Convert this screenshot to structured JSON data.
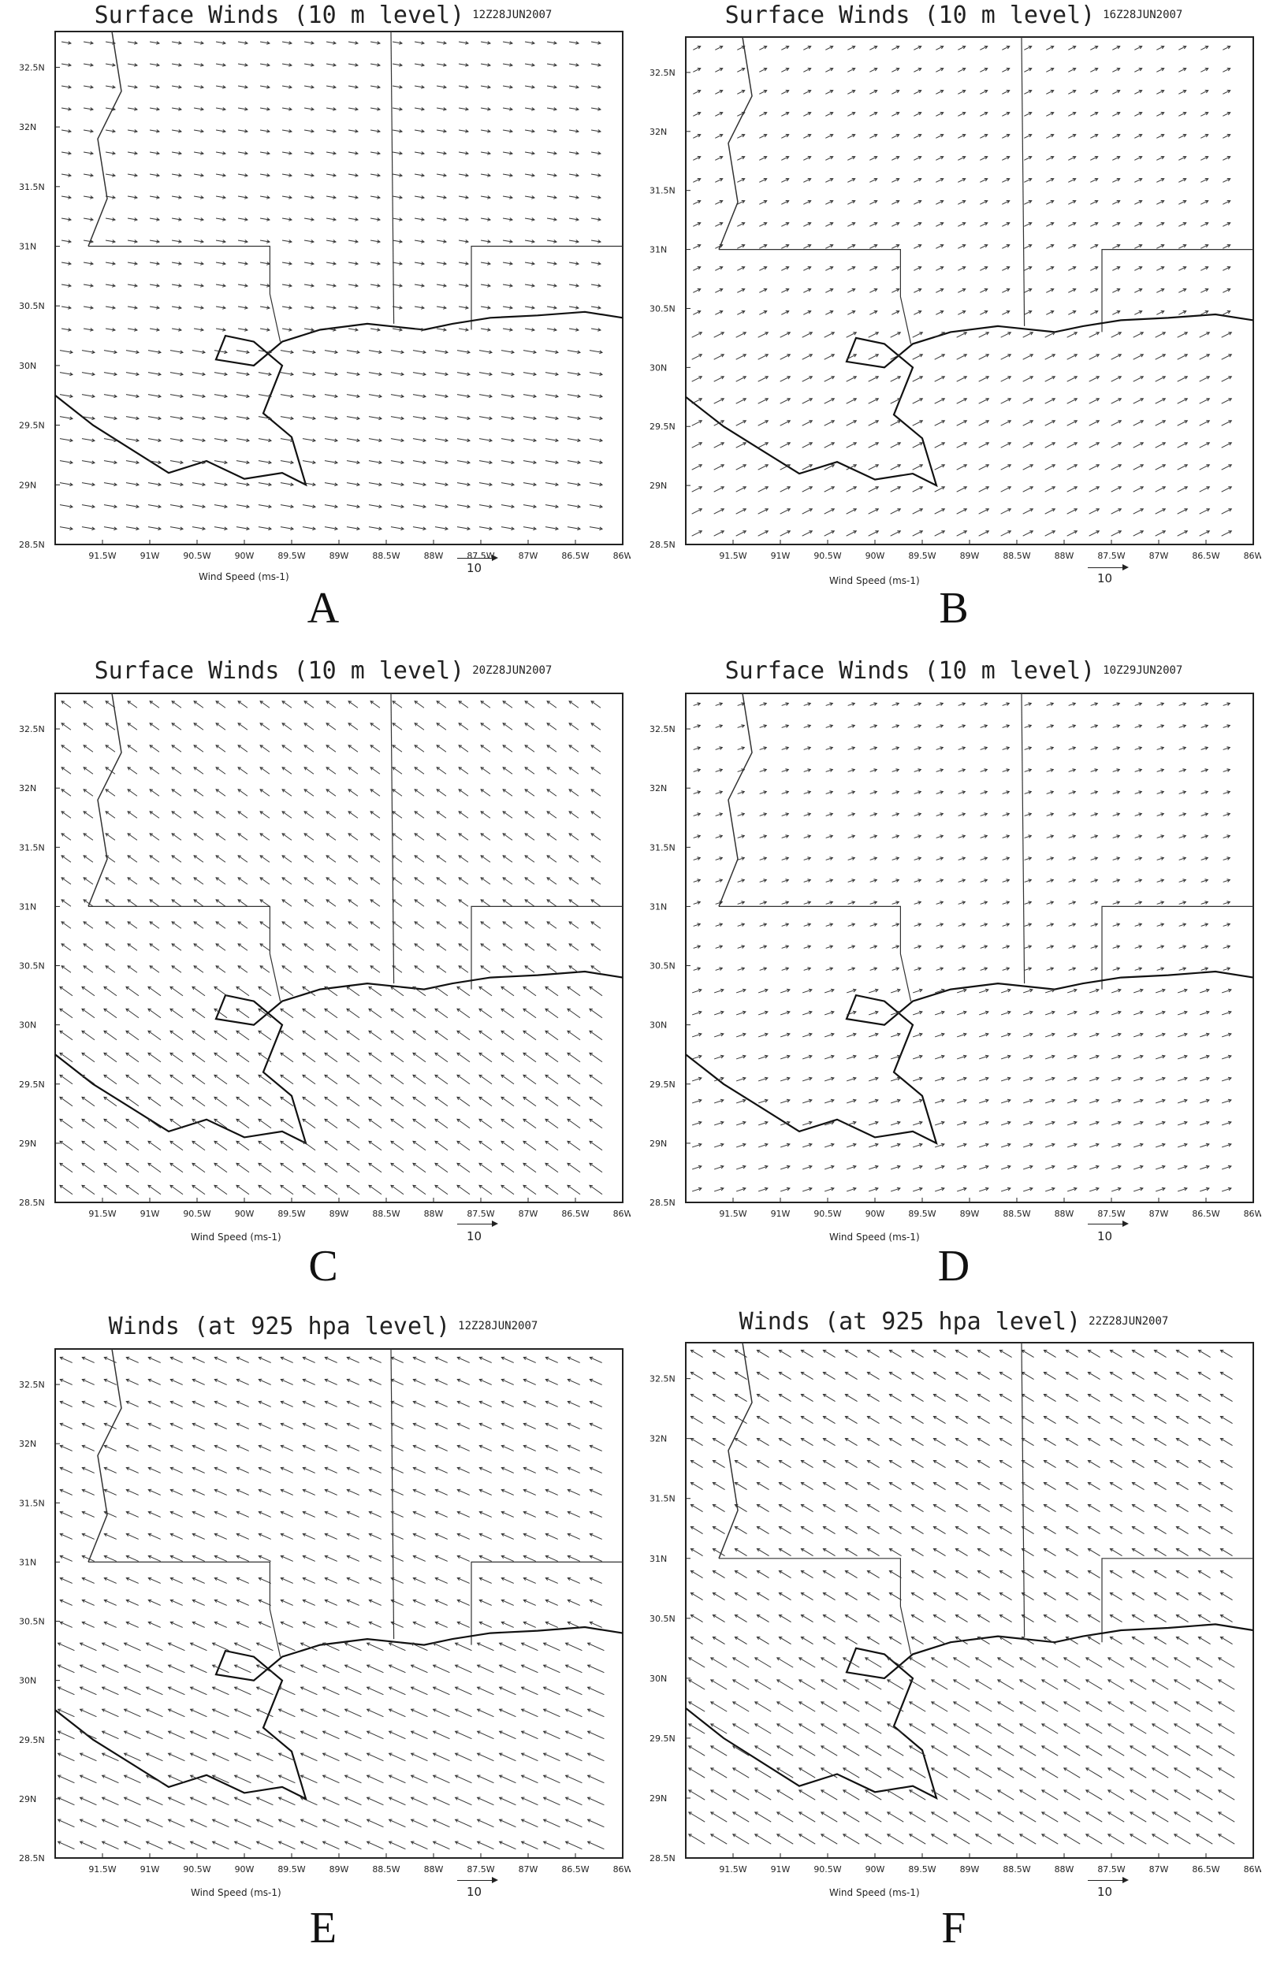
{
  "panels": [
    {
      "id": "A",
      "title": "Surface Winds (10 m level)",
      "stamp": "12Z28JUN2007",
      "letter": "A",
      "u": 0.6,
      "v": -0.1
    },
    {
      "id": "B",
      "title": "Surface Winds (10 m level)",
      "stamp": "16Z28JUN2007",
      "letter": "B",
      "u": 0.4,
      "v": 0.2
    },
    {
      "id": "C",
      "title": "Surface Winds (10 m level)",
      "stamp": "20Z28JUN2007",
      "letter": "C",
      "u": -0.7,
      "v": 0.5
    },
    {
      "id": "D",
      "title": "Surface Winds (10 m level)",
      "stamp": "10Z29JUN2007",
      "letter": "D",
      "u": 0.3,
      "v": 0.1
    },
    {
      "id": "E",
      "title": "Winds (at 925 hpa level)",
      "stamp": "12Z28JUN2007",
      "letter": "E",
      "u": -1.0,
      "v": 0.45
    },
    {
      "id": "F",
      "title": "Winds (at 925 hpa level)",
      "stamp": "22Z28JUN2007",
      "letter": "F",
      "u": -1.0,
      "v": 0.6
    }
  ],
  "lat_labels": [
    "32.5N",
    "32N",
    "31.5N",
    "31N",
    "30.5N",
    "30N",
    "29.5N",
    "29N",
    "28.5N"
  ],
  "lon_labels": [
    "91.5W",
    "91W",
    "90.5W",
    "90W",
    "89.5W",
    "89W",
    "88.5W",
    "88W",
    "87.5W",
    "87W",
    "86.5W",
    "86W"
  ],
  "unit_label": "Wind Speed (ms-1)",
  "ref_vector_label": "10",
  "map_extent": {
    "lon": [
      -92.0,
      -86.0
    ],
    "lat": [
      28.5,
      32.8
    ]
  }
}
